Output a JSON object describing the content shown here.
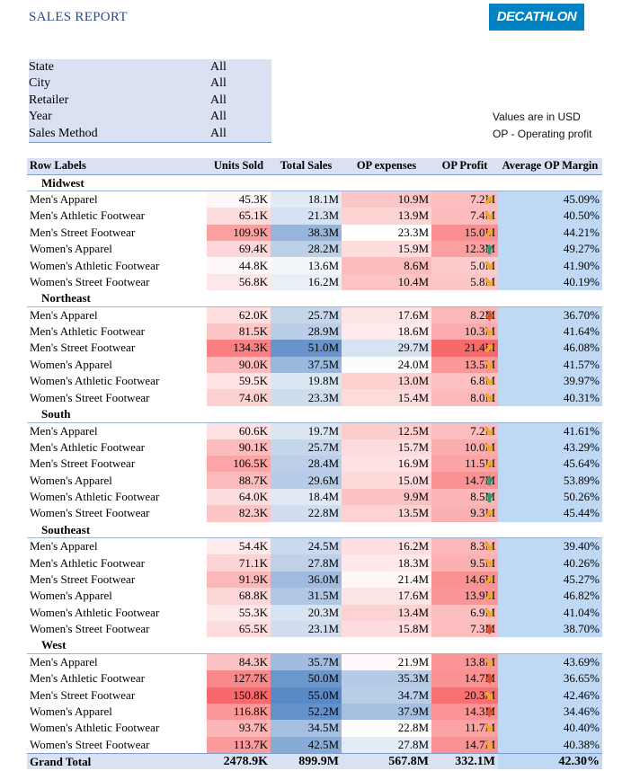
{
  "report_title": "SALES REPORT",
  "logo_text": "DECATHLON",
  "filters": [
    {
      "label": "State",
      "value": "All"
    },
    {
      "label": "City",
      "value": "All"
    },
    {
      "label": "Retailer",
      "value": "All"
    },
    {
      "label": "Year",
      "value": "All"
    },
    {
      "label": "Sales Method",
      "value": "All"
    }
  ],
  "notes": {
    "line1": "Values are in USD",
    "line2": "OP - Operating profit"
  },
  "table": {
    "headers": [
      "Row Labels",
      "Units Sold",
      "Total Sales",
      "OP expenses",
      "OP Profit",
      "Average OP Margin"
    ],
    "regions": [
      {
        "name": "Midwest",
        "rows": [
          {
            "label": "Men's Apparel",
            "units": "45.3K",
            "sales": "18.1M",
            "opex": "10.9M",
            "profit": "7.2M",
            "trend": "up-right",
            "margin": "45.09%"
          },
          {
            "label": "Men's Athletic Footwear",
            "units": "65.1K",
            "sales": "21.3M",
            "opex": "13.9M",
            "profit": "7.4M",
            "trend": "down-right",
            "margin": "40.50%"
          },
          {
            "label": "Men's Street Footwear",
            "units": "109.9K",
            "sales": "38.3M",
            "opex": "23.3M",
            "profit": "15.0M",
            "trend": "up-right",
            "margin": "44.21%"
          },
          {
            "label": "Women's Apparel",
            "units": "69.4K",
            "sales": "28.2M",
            "opex": "15.9M",
            "profit": "12.3M",
            "trend": "up",
            "margin": "49.27%"
          },
          {
            "label": "Women's Athletic Footwear",
            "units": "44.8K",
            "sales": "13.6M",
            "opex": "8.6M",
            "profit": "5.0M",
            "trend": "down-right",
            "margin": "41.90%"
          },
          {
            "label": "Women's Street Footwear",
            "units": "56.8K",
            "sales": "16.2M",
            "opex": "10.4M",
            "profit": "5.8M",
            "trend": "down-right",
            "margin": "40.19%"
          }
        ]
      },
      {
        "name": "Northeast",
        "rows": [
          {
            "label": "Men's Apparel",
            "units": "62.0K",
            "sales": "25.7M",
            "opex": "17.6M",
            "profit": "8.2M",
            "trend": "down",
            "margin": "36.70%"
          },
          {
            "label": "Men's Athletic Footwear",
            "units": "81.5K",
            "sales": "28.9M",
            "opex": "18.6M",
            "profit": "10.3M",
            "trend": "down-right",
            "margin": "41.64%"
          },
          {
            "label": "Men's Street Footwear",
            "units": "134.3K",
            "sales": "51.0M",
            "opex": "29.7M",
            "profit": "21.4M",
            "trend": "up-right",
            "margin": "46.08%"
          },
          {
            "label": "Women's Apparel",
            "units": "90.0K",
            "sales": "37.5M",
            "opex": "24.0M",
            "profit": "13.5M",
            "trend": "down-right",
            "margin": "41.57%"
          },
          {
            "label": "Women's Athletic Footwear",
            "units": "59.5K",
            "sales": "19.8M",
            "opex": "13.0M",
            "profit": "6.8M",
            "trend": "down-right",
            "margin": "39.97%"
          },
          {
            "label": "Women's Street Footwear",
            "units": "74.0K",
            "sales": "23.3M",
            "opex": "15.4M",
            "profit": "8.0M",
            "trend": "down-right",
            "margin": "40.31%"
          }
        ]
      },
      {
        "name": "South",
        "rows": [
          {
            "label": "Men's Apparel",
            "units": "60.6K",
            "sales": "19.7M",
            "opex": "12.5M",
            "profit": "7.2M",
            "trend": "down-right",
            "margin": "41.61%"
          },
          {
            "label": "Men's Athletic Footwear",
            "units": "90.1K",
            "sales": "25.7M",
            "opex": "15.7M",
            "profit": "10.0M",
            "trend": "down-right",
            "margin": "43.29%"
          },
          {
            "label": "Men's Street Footwear",
            "units": "106.5K",
            "sales": "28.4M",
            "opex": "16.9M",
            "profit": "11.5M",
            "trend": "up-right",
            "margin": "45.64%"
          },
          {
            "label": "Women's Apparel",
            "units": "88.7K",
            "sales": "29.6M",
            "opex": "15.0M",
            "profit": "14.7M",
            "trend": "up",
            "margin": "53.89%"
          },
          {
            "label": "Women's Athletic Footwear",
            "units": "64.0K",
            "sales": "18.4M",
            "opex": "9.9M",
            "profit": "8.5M",
            "trend": "up",
            "margin": "50.26%"
          },
          {
            "label": "Women's Street Footwear",
            "units": "82.3K",
            "sales": "22.8M",
            "opex": "13.5M",
            "profit": "9.3M",
            "trend": "up-right",
            "margin": "45.44%"
          }
        ]
      },
      {
        "name": "Southeast",
        "rows": [
          {
            "label": "Men's Apparel",
            "units": "54.4K",
            "sales": "24.5M",
            "opex": "16.2M",
            "profit": "8.3M",
            "trend": "down-right",
            "margin": "39.40%"
          },
          {
            "label": "Men's Athletic Footwear",
            "units": "71.1K",
            "sales": "27.8M",
            "opex": "18.3M",
            "profit": "9.5M",
            "trend": "down-right",
            "margin": "40.26%"
          },
          {
            "label": "Men's Street Footwear",
            "units": "91.9K",
            "sales": "36.0M",
            "opex": "21.4M",
            "profit": "14.6M",
            "trend": "up-right",
            "margin": "45.27%"
          },
          {
            "label": "Women's Apparel",
            "units": "68.8K",
            "sales": "31.5M",
            "opex": "17.6M",
            "profit": "13.9M",
            "trend": "up-right",
            "margin": "46.82%"
          },
          {
            "label": "Women's Athletic Footwear",
            "units": "55.3K",
            "sales": "20.3M",
            "opex": "13.4M",
            "profit": "6.9M",
            "trend": "down-right",
            "margin": "41.04%"
          },
          {
            "label": "Women's Street Footwear",
            "units": "65.5K",
            "sales": "23.1M",
            "opex": "15.8M",
            "profit": "7.3M",
            "trend": "down",
            "margin": "38.70%"
          }
        ]
      },
      {
        "name": "West",
        "rows": [
          {
            "label": "Men's Apparel",
            "units": "84.3K",
            "sales": "35.7M",
            "opex": "21.9M",
            "profit": "13.8M",
            "trend": "down-right",
            "margin": "43.69%"
          },
          {
            "label": "Men's Athletic Footwear",
            "units": "127.7K",
            "sales": "50.0M",
            "opex": "35.3M",
            "profit": "14.7M",
            "trend": "down",
            "margin": "36.65%"
          },
          {
            "label": "Men's Street Footwear",
            "units": "150.8K",
            "sales": "55.0M",
            "opex": "34.7M",
            "profit": "20.3M",
            "trend": "down-right",
            "margin": "42.46%"
          },
          {
            "label": "Women's Apparel",
            "units": "116.8K",
            "sales": "52.2M",
            "opex": "37.9M",
            "profit": "14.3M",
            "trend": "down",
            "margin": "34.46%"
          },
          {
            "label": "Women's Athletic Footwear",
            "units": "93.7K",
            "sales": "34.5M",
            "opex": "22.8M",
            "profit": "11.7M",
            "trend": "down-right",
            "margin": "40.40%"
          },
          {
            "label": "Women's Street Footwear",
            "units": "113.7K",
            "sales": "42.5M",
            "opex": "27.8M",
            "profit": "14.7M",
            "trend": "down-right",
            "margin": "40.38%"
          }
        ]
      }
    ],
    "grand_total": {
      "label": "Grand Total",
      "units": "2478.9K",
      "sales": "899.9M",
      "opex": "567.8M",
      "profit": "332.1M",
      "margin": "42.30%"
    }
  },
  "colors": {
    "trend_up": "#2e9a7a",
    "trend_up_right": "#f0a830",
    "trend_down_right": "#f0a830",
    "trend_down": "#e0502a",
    "heat_red": "#f8696b",
    "heat_blue": "#5a8ac6",
    "margin_fill": "#bfd9f5"
  }
}
